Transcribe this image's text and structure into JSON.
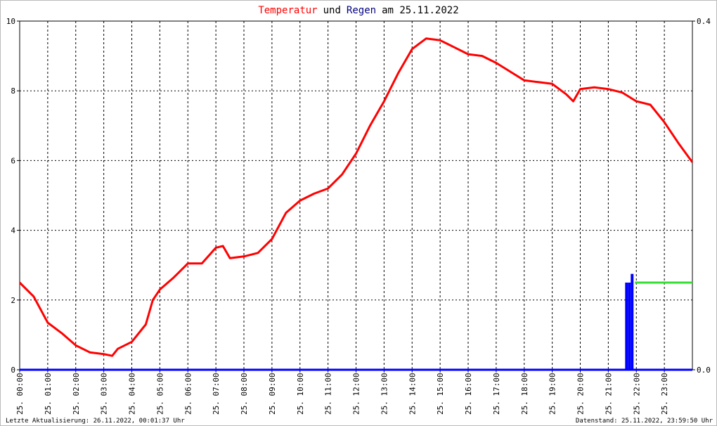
{
  "chart_data": {
    "type": "line",
    "title_parts": [
      {
        "text": "Temperatur",
        "color": "#ff0000"
      },
      {
        "text": "und",
        "color": "#000000"
      },
      {
        "text": "Regen",
        "color": "#000080"
      },
      {
        "text": "am 25.11.2022",
        "color": "#000000"
      }
    ],
    "xlim": [
      0,
      24
    ],
    "xticks": [
      {
        "value": 0,
        "label": "25. 00:00"
      },
      {
        "value": 1,
        "label": "25. 01:00"
      },
      {
        "value": 2,
        "label": "25. 02:00"
      },
      {
        "value": 3,
        "label": "25. 03:00"
      },
      {
        "value": 4,
        "label": "25. 04:00"
      },
      {
        "value": 5,
        "label": "25. 05:00"
      },
      {
        "value": 6,
        "label": "25. 06:00"
      },
      {
        "value": 7,
        "label": "25. 07:00"
      },
      {
        "value": 8,
        "label": "25. 08:00"
      },
      {
        "value": 9,
        "label": "25. 09:00"
      },
      {
        "value": 10,
        "label": "25. 10:00"
      },
      {
        "value": 11,
        "label": "25. 11:00"
      },
      {
        "value": 12,
        "label": "25. 12:00"
      },
      {
        "value": 13,
        "label": "25. 13:00"
      },
      {
        "value": 14,
        "label": "25. 14:00"
      },
      {
        "value": 15,
        "label": "25. 15:00"
      },
      {
        "value": 16,
        "label": "25. 16:00"
      },
      {
        "value": 17,
        "label": "25. 17:00"
      },
      {
        "value": 18,
        "label": "25. 18:00"
      },
      {
        "value": 19,
        "label": "25. 19:00"
      },
      {
        "value": 20,
        "label": "25. 20:00"
      },
      {
        "value": 21,
        "label": "25. 21:00"
      },
      {
        "value": 22,
        "label": "25. 22:00"
      },
      {
        "value": 23,
        "label": "25. 23:00"
      }
    ],
    "ylim": [
      0,
      10
    ],
    "yticks": [
      0,
      2,
      4,
      6,
      8,
      10
    ],
    "y2lim": [
      0,
      0.4
    ],
    "y2ticks": [
      {
        "value": 0,
        "label": "0.0"
      },
      {
        "value": 0.4,
        "label": "0.4"
      }
    ],
    "grid": true,
    "series": [
      {
        "name": "Temperatur",
        "color": "#ff0000",
        "kind": "line",
        "x": [
          0,
          0.5,
          1,
          1.5,
          2,
          2.5,
          3,
          3.3,
          3.5,
          4,
          4.5,
          4.75,
          5,
          5.5,
          6,
          6.5,
          7,
          7.25,
          7.5,
          8,
          8.5,
          9,
          9.5,
          10,
          10.5,
          11,
          11.5,
          12,
          12.5,
          13,
          13.5,
          14,
          14.5,
          15,
          15.5,
          16,
          16.5,
          17,
          17.5,
          18,
          18.5,
          19,
          19.5,
          19.75,
          20,
          20.5,
          21,
          21.5,
          22,
          22.5,
          23,
          23.5,
          24
        ],
        "values": [
          2.5,
          2.1,
          1.35,
          1.05,
          0.7,
          0.5,
          0.45,
          0.4,
          0.6,
          0.8,
          1.3,
          2.0,
          2.3,
          2.65,
          3.05,
          3.05,
          3.5,
          3.55,
          3.2,
          3.25,
          3.35,
          3.75,
          4.5,
          4.85,
          5.05,
          5.2,
          5.6,
          6.2,
          7.0,
          7.7,
          8.5,
          9.2,
          9.5,
          9.45,
          9.25,
          9.05,
          9.0,
          8.8,
          8.55,
          8.3,
          8.25,
          8.2,
          7.9,
          7.7,
          8.05,
          8.1,
          8.05,
          7.95,
          7.7,
          7.6,
          7.1,
          6.5,
          5.95
        ]
      },
      {
        "name": "Regen",
        "color": "#0000ff",
        "kind": "bar",
        "axis": "y2",
        "x": [
          21.6,
          21.7,
          21.8
        ],
        "values": [
          0.1,
          0.1,
          0.11
        ]
      },
      {
        "color": "#33dd33",
        "kind": "line",
        "axis": "y2",
        "x": [
          21.95,
          24
        ],
        "values": [
          0.1,
          0.1
        ]
      }
    ],
    "footer_left": "Letzte Aktualisierung: 26.11.2022, 00:01:37 Uhr",
    "footer_right": "Datenstand: 25.11.2022, 23:59:50 Uhr"
  }
}
